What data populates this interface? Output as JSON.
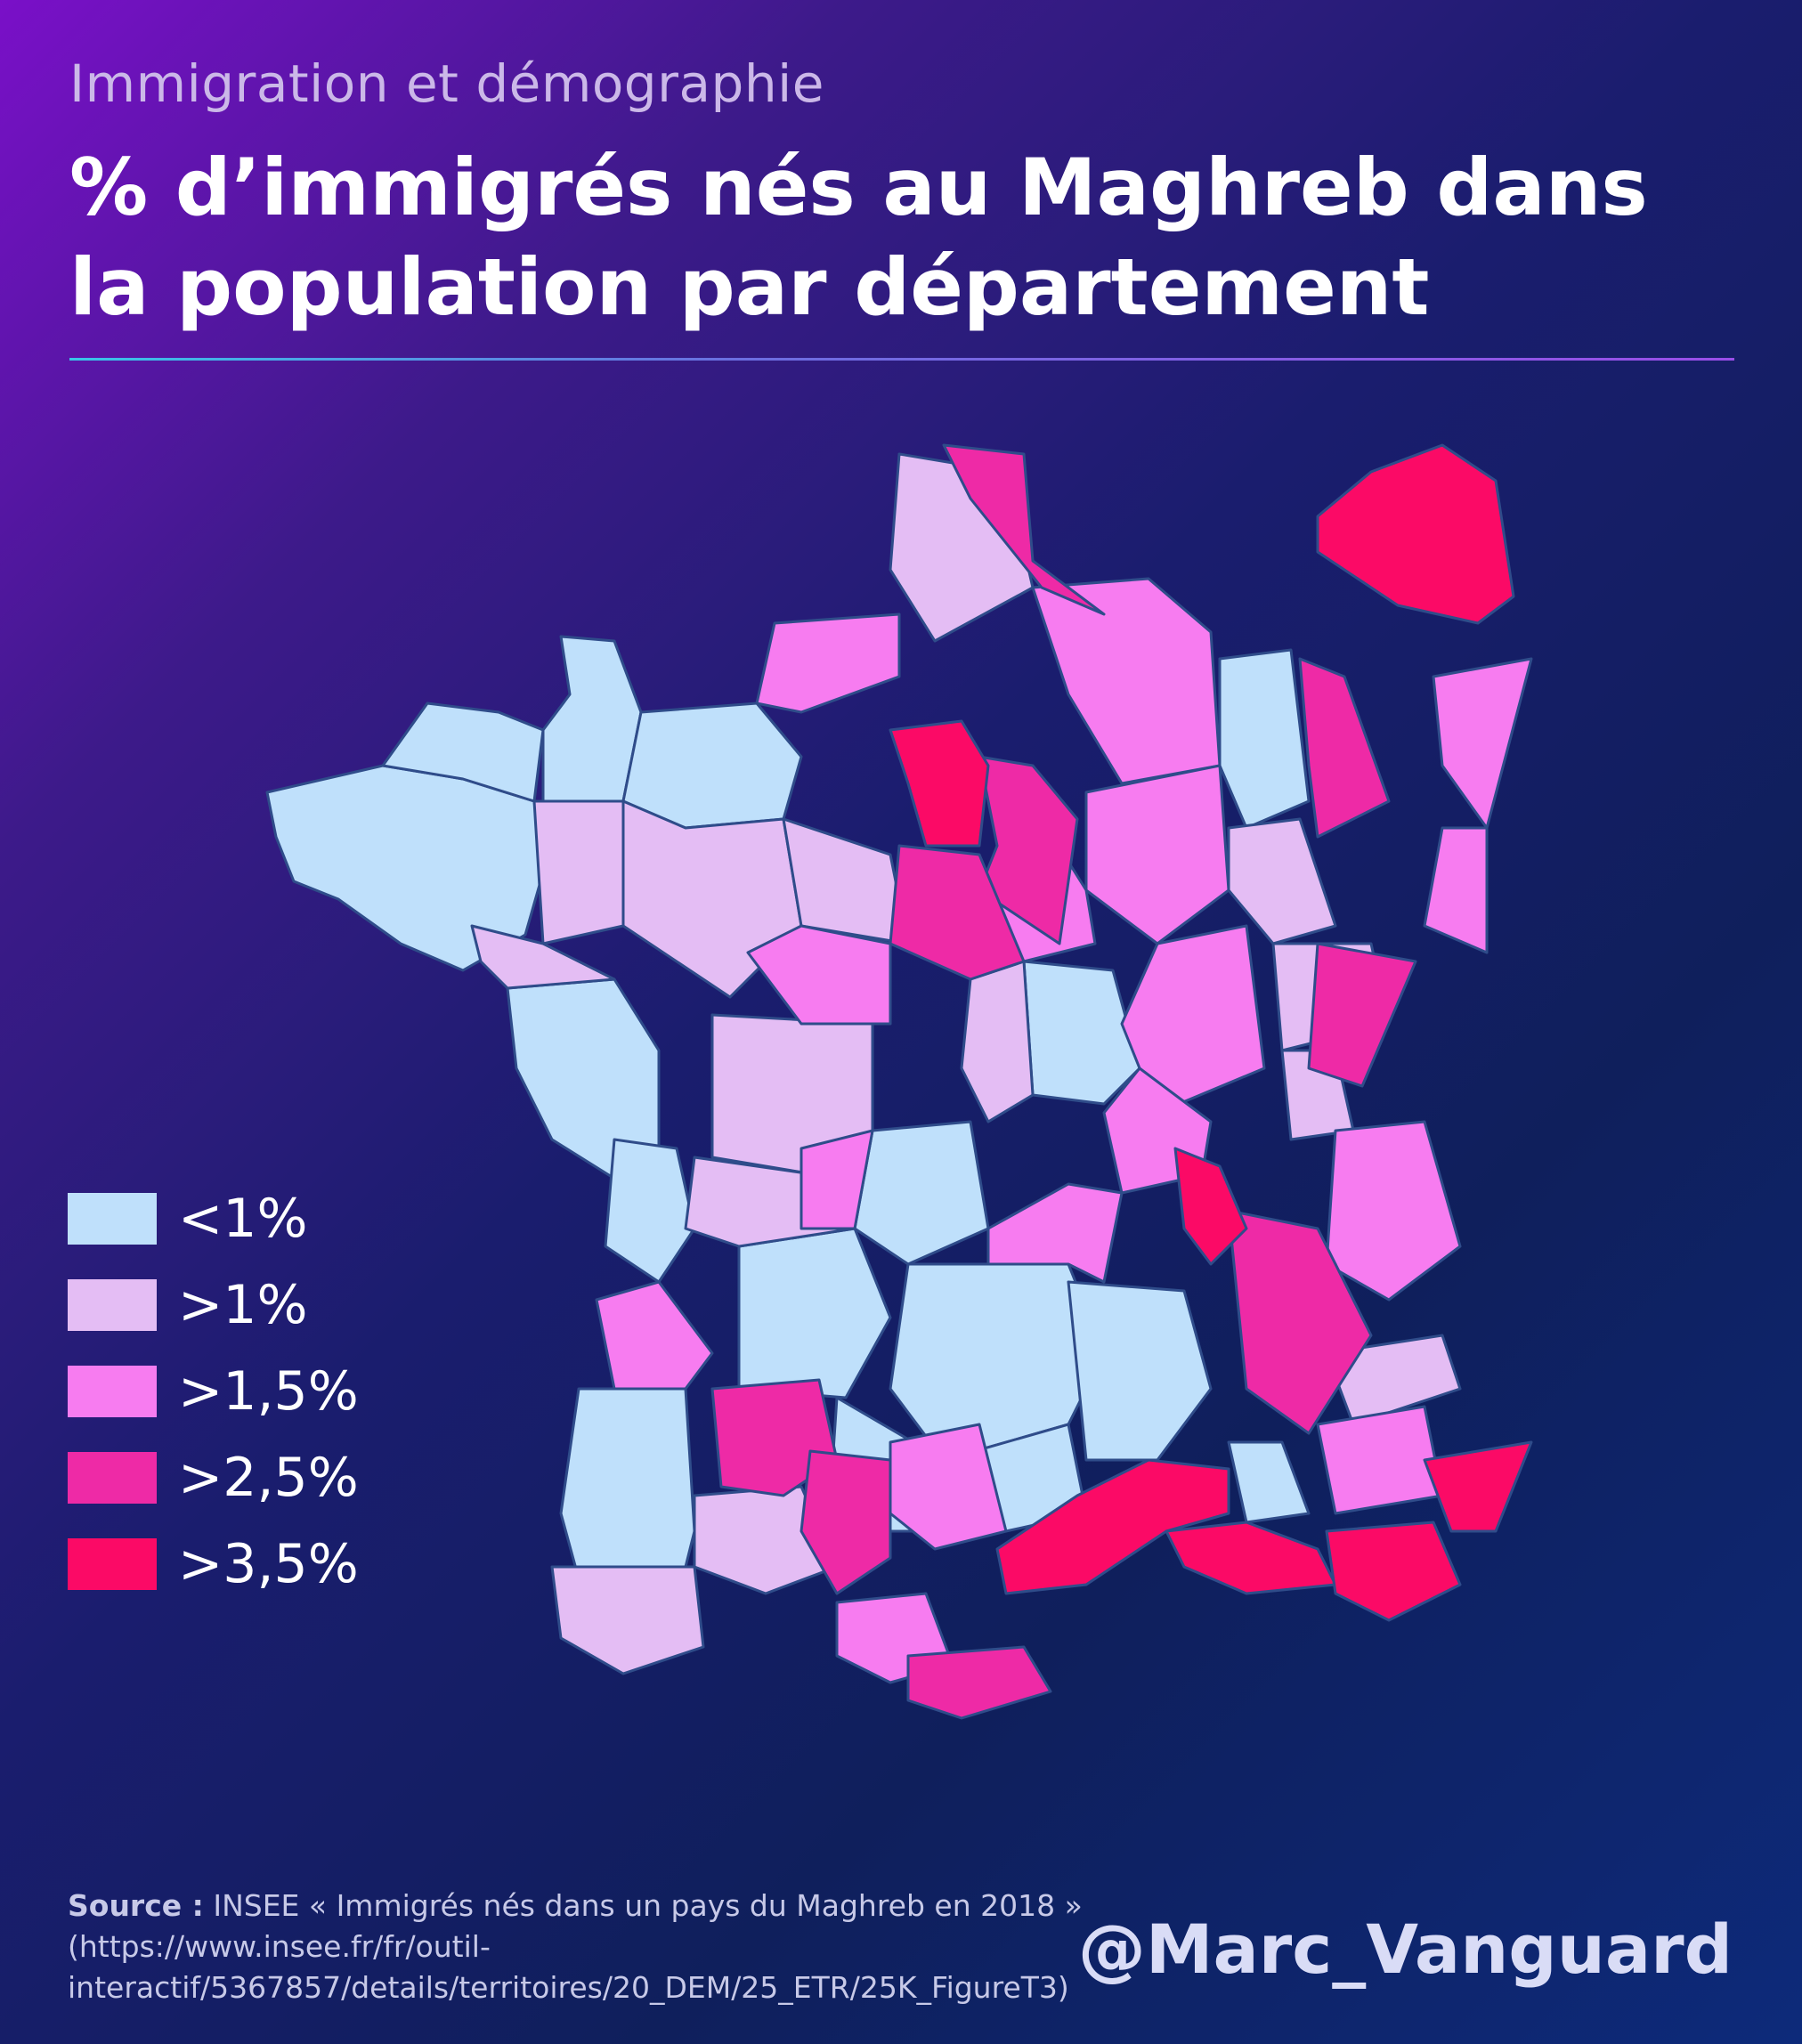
{
  "header": {
    "kicker": "Immigration et démographie",
    "title": "% d’immigrés nés au Maghreb dans la population par département"
  },
  "legend": [
    {
      "label": "<1%",
      "color": "#bfe0fb"
    },
    {
      "label": ">1%",
      "color": "#e4bdf4"
    },
    {
      "label": ">1,5%",
      "color": "#f77cf0"
    },
    {
      "label": ">2,5%",
      "color": "#ee2aa6"
    },
    {
      "label": ">3,5%",
      "color": "#fb0a66"
    }
  ],
  "map": {
    "border_color": "#2f4c8a",
    "region_classes": [
      "<1%",
      ">1%",
      ">1,5%",
      ">2,5%",
      ">3,5%"
    ]
  },
  "footer": {
    "source_label": "Source :",
    "source_text": "INSEE « Immigrés nés dans un pays du Maghreb en 2018 » (https://www.insee.fr/fr/outil-interactif/5367857/details/territoires/20_DEM/25_ETR/25K_FigureT3)",
    "handle": "@Marc_Vanguard"
  }
}
